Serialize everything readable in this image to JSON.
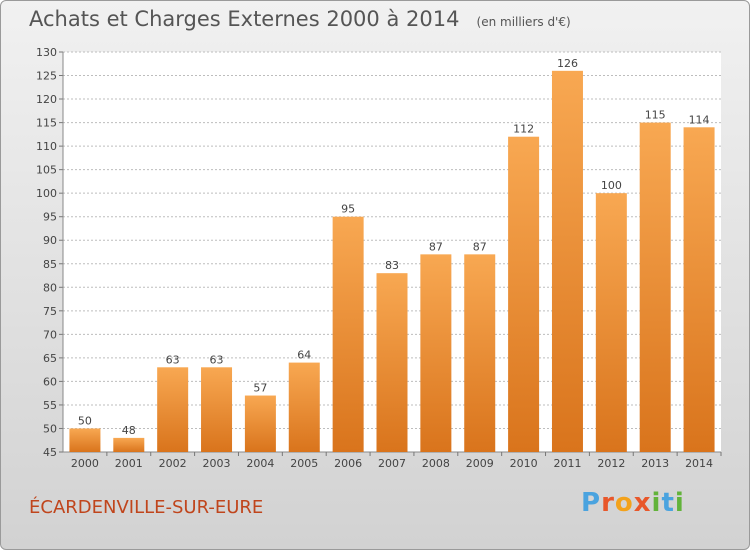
{
  "title": "Achats et Charges Externes 2000 à 2014",
  "unit": "(en milliers d'€)",
  "commune": "ÉCARDENVILLE-SUR-EURE",
  "logo": [
    "P",
    "r",
    "o",
    "x",
    "i",
    "t",
    "i"
  ],
  "colors": {
    "bar_light": "#f8a852",
    "bar_dark": "#d9741c",
    "commune_text": "#c0451c",
    "title_text": "#555555"
  },
  "chart_data": {
    "type": "bar",
    "title": "Achats et Charges Externes 2000 à 2014",
    "subtitle": "(en milliers d'€)",
    "categories": [
      "2000",
      "2001",
      "2002",
      "2003",
      "2004",
      "2005",
      "2006",
      "2007",
      "2008",
      "2009",
      "2010",
      "2011",
      "2012",
      "2013",
      "2014"
    ],
    "values": [
      50,
      48,
      63,
      63,
      57,
      64,
      95,
      83,
      87,
      87,
      112,
      126,
      100,
      115,
      114
    ],
    "ylim": [
      45,
      130
    ],
    "yticks": [
      45,
      50,
      55,
      60,
      65,
      70,
      75,
      80,
      85,
      90,
      95,
      100,
      105,
      110,
      115,
      120,
      125,
      130
    ],
    "grid": true,
    "data_labels": true
  }
}
